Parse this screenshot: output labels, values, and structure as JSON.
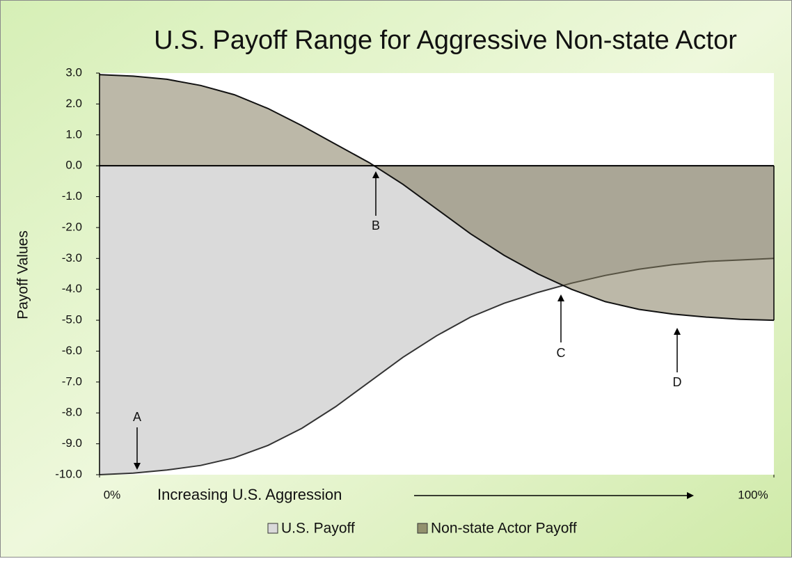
{
  "chart_data": {
    "type": "area",
    "title": "U.S. Payoff Range for Aggressive Non-state Actor",
    "y_label": "Payoff Values",
    "x_label": "Increasing U.S. Aggression",
    "x": [
      0,
      5,
      10,
      15,
      20,
      25,
      30,
      35,
      40,
      45,
      50,
      55,
      60,
      65,
      70,
      75,
      80,
      85,
      90,
      95,
      100
    ],
    "xlim": [
      0,
      100
    ],
    "xticks": [
      {
        "value": 0,
        "label": "0%"
      },
      {
        "value": 100,
        "label": "100%"
      }
    ],
    "ylim": [
      -10,
      3
    ],
    "yticks": [
      {
        "value": 3,
        "label": "3.0"
      },
      {
        "value": 2,
        "label": "2.0"
      },
      {
        "value": 1,
        "label": "1.0"
      },
      {
        "value": 0,
        "label": "0.0"
      },
      {
        "value": -1,
        "label": "-1.0"
      },
      {
        "value": -2,
        "label": "-2.0"
      },
      {
        "value": -3,
        "label": "-3.0"
      },
      {
        "value": -4,
        "label": "-4.0"
      },
      {
        "value": -5,
        "label": "-5.0"
      },
      {
        "value": -6,
        "label": "-6.0"
      },
      {
        "value": -7,
        "label": "-7.0"
      },
      {
        "value": -8,
        "label": "-8.0"
      },
      {
        "value": -9,
        "label": "-9.0"
      },
      {
        "value": -10,
        "label": "-10.0"
      }
    ],
    "series": [
      {
        "name": "U.S. Payoff",
        "color": "#dadada",
        "values": [
          -10,
          -9.95,
          -9.85,
          -9.7,
          -9.45,
          -9.05,
          -8.5,
          -7.8,
          -7.0,
          -6.2,
          -5.5,
          -4.9,
          -4.45,
          -4.1,
          -3.8,
          -3.55,
          -3.35,
          -3.2,
          -3.1,
          -3.05,
          -3.0
        ]
      },
      {
        "name": "Non-state Actor Payoff",
        "color": "#7a7252",
        "values": [
          2.95,
          2.9,
          2.8,
          2.6,
          2.3,
          1.85,
          1.3,
          0.7,
          0.1,
          -0.6,
          -1.4,
          -2.2,
          -2.9,
          -3.5,
          -4.0,
          -4.4,
          -4.65,
          -4.8,
          -4.9,
          -4.97,
          -5.0
        ]
      }
    ],
    "annotations": [
      "A",
      "B",
      "C",
      "D"
    ],
    "legend": "bottom"
  }
}
